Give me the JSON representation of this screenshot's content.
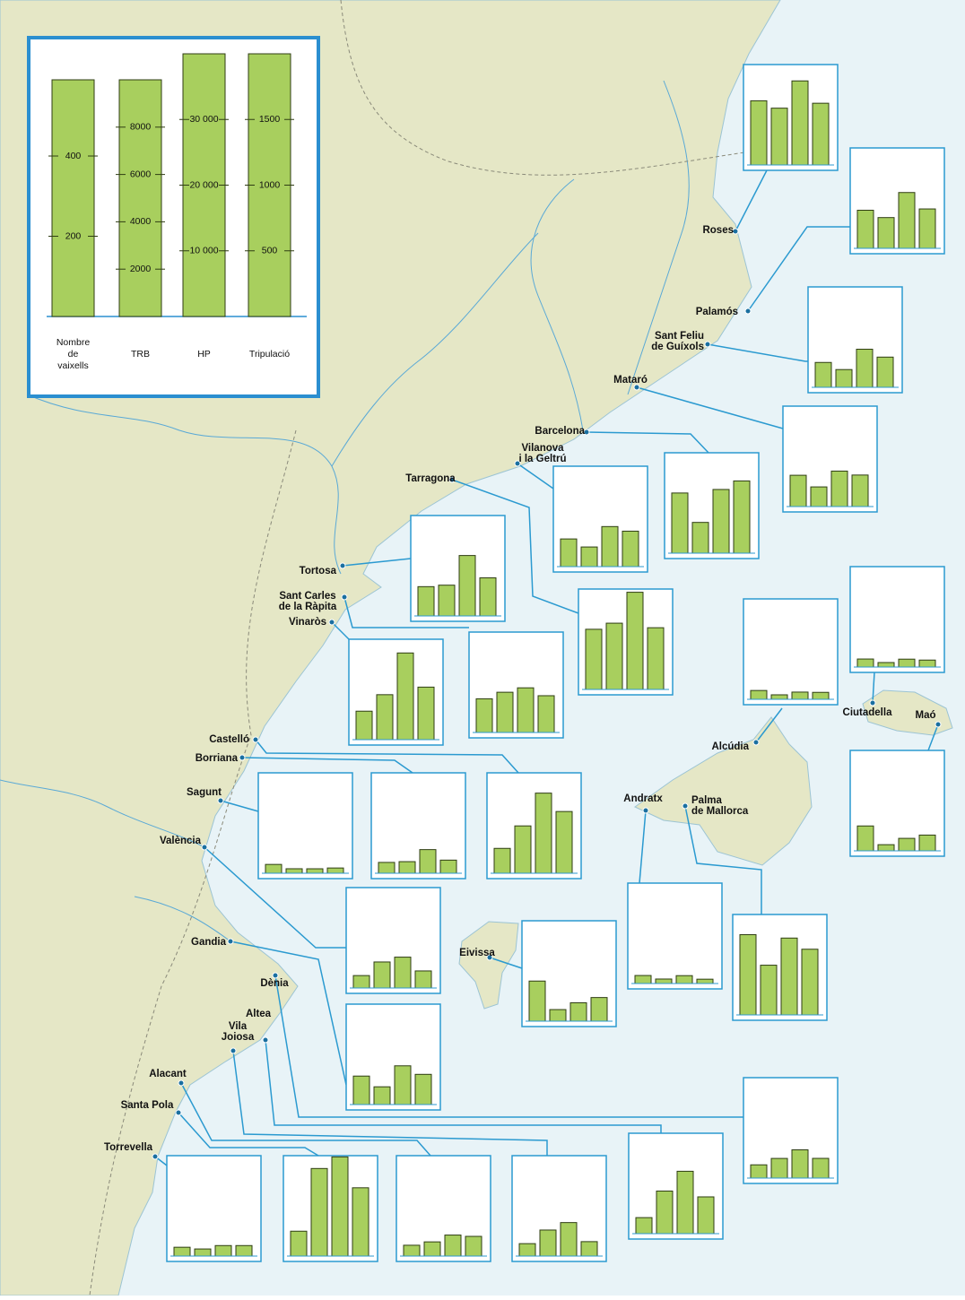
{
  "legend": {
    "axes": [
      {
        "name": [
          "Nombre",
          "de",
          "vaixells"
        ],
        "ylim": [
          0,
          590
        ],
        "yticks": [
          200,
          400
        ]
      },
      {
        "name": [
          "TRB"
        ],
        "ylim": [
          0,
          10000
        ],
        "yticks": [
          2000,
          4000,
          6000,
          8000
        ]
      },
      {
        "name": [
          "HP"
        ],
        "ylim": [
          0,
          40000
        ],
        "yticks": [
          {
            "value": 10000,
            "label": "10 000"
          },
          {
            "value": 20000,
            "label": "20 000"
          },
          {
            "value": 30000,
            "label": "30 000"
          }
        ]
      },
      {
        "name": [
          "Tripulació"
        ],
        "ylim": [
          0,
          2000
        ],
        "yticks": [
          500,
          1000,
          1500
        ]
      }
    ]
  },
  "ports": [
    {
      "name": [
        "Roses"
      ],
      "values": [
        160,
        2400,
        12800,
        470
      ]
    },
    {
      "name": [
        "Palamós"
      ],
      "values": [
        95,
        1300,
        8500,
        300
      ]
    },
    {
      "name": [
        "Sant Feliu",
        "de Guíxols"
      ],
      "values": [
        62,
        750,
        5800,
        230
      ]
    },
    {
      "name": [
        "Mataró"
      ],
      "values": [
        78,
        830,
        5400,
        240
      ]
    },
    {
      "name": [
        "Barcelona"
      ],
      "values": [
        150,
        1300,
        9700,
        550
      ]
    },
    {
      "name": [
        "Vilanova",
        "i la Geltrú"
      ],
      "values": [
        69,
        830,
        6100,
        270
      ]
    },
    {
      "name": [
        "Tarragona"
      ],
      "values": [
        150,
        2800,
        14800,
        470
      ]
    },
    {
      "name": [
        "Tortosa"
      ],
      "values": [
        73,
        1300,
        9200,
        290
      ]
    },
    {
      "name": [
        "Sant Carles",
        "de la Ràpita"
      ],
      "values": [
        84,
        1700,
        6800,
        280
      ]
    },
    {
      "name": [
        "Vinaròs"
      ],
      "values": [
        71,
        1900,
        13200,
        400
      ]
    },
    {
      "name": [
        "Castelló"
      ],
      "values": [
        62,
        2000,
        12200,
        470
      ]
    },
    {
      "name": [
        "Borriana"
      ],
      "values": [
        27,
        490,
        3600,
        100
      ]
    },
    {
      "name": [
        "Sagunt"
      ],
      "values": [
        22,
        190,
        680,
        40
      ]
    },
    {
      "name": [
        "València"
      ],
      "values": [
        31,
        1100,
        4700,
        130
      ]
    },
    {
      "name": [
        "Gandia"
      ],
      "values": [
        71,
        750,
        5900,
        230
      ]
    },
    {
      "name": [
        "Eivissa"
      ],
      "values": [
        100,
        490,
        2800,
        180
      ]
    },
    {
      "name": [
        "Andratx"
      ],
      "values": [
        20,
        190,
        1200,
        33
      ]
    },
    {
      "name": [
        "Palma",
        "de Mallorca"
      ],
      "values": [
        200,
        2100,
        11700,
        500
      ]
    },
    {
      "name": [
        "Alcúdia"
      ],
      "values": [
        22,
        190,
        1100,
        53
      ]
    },
    {
      "name": [
        "Ciutadella"
      ],
      "values": [
        20,
        190,
        1200,
        53
      ]
    },
    {
      "name": [
        "Maó"
      ],
      "values": [
        62,
        260,
        1900,
        120
      ]
    },
    {
      "name": [
        "Dènia"
      ],
      "values": [
        33,
        830,
        4300,
        150
      ]
    },
    {
      "name": [
        "Altea"
      ],
      "values": [
        40,
        1800,
        9500,
        280
      ]
    },
    {
      "name": [
        "Vila",
        "Joiosa"
      ],
      "values": [
        31,
        1100,
        5100,
        110
      ]
    },
    {
      "name": [
        "Alacant"
      ],
      "values": [
        27,
        600,
        3200,
        150
      ]
    },
    {
      "name": [
        "Santa Pola"
      ],
      "values": [
        62,
        3700,
        15100,
        520
      ]
    },
    {
      "name": [
        "Torrevella"
      ],
      "values": [
        22,
        300,
        1600,
        80
      ]
    }
  ]
}
